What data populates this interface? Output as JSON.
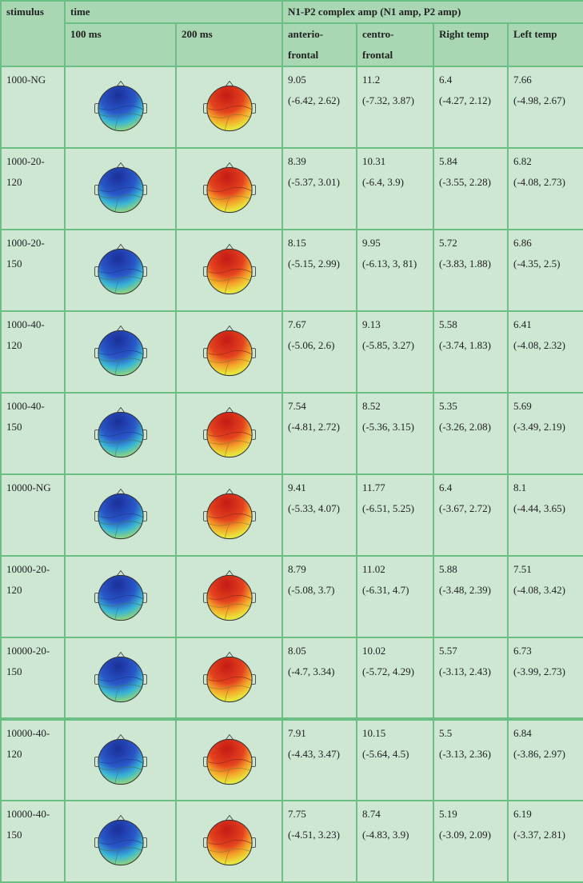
{
  "headers": {
    "stimulus": "stimulus",
    "time": "time",
    "amp_group": "N1-P2 complex amp (N1 amp, P2 amp)",
    "t100": "100 ms",
    "t200": "200 ms",
    "anterio_1": "anterio-",
    "anterio_2": "frontal",
    "centro_1": "centro-",
    "centro_2": "frontal",
    "right_temp": "Right temp",
    "left_temp": "Left temp"
  },
  "colors": {
    "border": "#6cbf84",
    "cell_bg": "#cde7d3",
    "header_bg": "#a9d7b3"
  },
  "rows": [
    {
      "stim1": "1000-NG",
      "stim2": "",
      "af1": "9.05",
      "af2": "(-6.42, 2.62)",
      "cf1": "11.2",
      "cf2": "(-7.32, 3.87)",
      "rt1": "6.4",
      "rt2": "(-4.27, 2.12)",
      "lt1": "7.66",
      "lt2": "(-4.98, 2.67)"
    },
    {
      "stim1": "1000-20-",
      "stim2": "120",
      "af1": "8.39",
      "af2": "(-5.37, 3.01)",
      "cf1": "10.31",
      "cf2": "(-6.4, 3.9)",
      "rt1": "5.84",
      "rt2": "(-3.55, 2.28)",
      "lt1": "6.82",
      "lt2": "(-4.08, 2.73)"
    },
    {
      "stim1": "1000-20-",
      "stim2": "150",
      "af1": "8.15",
      "af2": "(-5.15, 2.99)",
      "cf1": "9.95",
      "cf2": "(-6.13, 3, 81)",
      "rt1": "5.72",
      "rt2": "(-3.83, 1.88)",
      "lt1": "6.86",
      "lt2": "(-4.35, 2.5)"
    },
    {
      "stim1": "1000-40-",
      "stim2": "120",
      "af1": "7.67",
      "af2": "(-5.06, 2.6)",
      "cf1": "9.13",
      "cf2": "(-5.85, 3.27)",
      "rt1": "5.58",
      "rt2": "(-3.74, 1.83)",
      "lt1": "6.41",
      "lt2": "(-4.08, 2.32)"
    },
    {
      "stim1": "1000-40-",
      "stim2": "150",
      "af1": "7.54",
      "af2": "(-4.81, 2.72)",
      "cf1": "8.52",
      "cf2": "(-5.36, 3.15)",
      "rt1": "5.35",
      "rt2": "(-3.26, 2.08)",
      "lt1": "5.69",
      "lt2": "(-3.49, 2.19)"
    },
    {
      "stim1": "10000-NG",
      "stim2": "",
      "af1": "9.41",
      "af2": "(-5.33, 4.07)",
      "cf1": "11.77",
      "cf2": "(-6.51, 5.25)",
      "rt1": "6.4",
      "rt2": "(-3.67, 2.72)",
      "lt1": "8.1",
      "lt2": "(-4.44, 3.65)"
    },
    {
      "stim1": "10000-20-",
      "stim2": "120",
      "af1": "8.79",
      "af2": "(-5.08, 3.7)",
      "cf1": "11.02",
      "cf2": "(-6.31, 4.7)",
      "rt1": "5.88",
      "rt2": "(-3.48, 2.39)",
      "lt1": "7.51",
      "lt2": "(-4.08, 3.42)"
    },
    {
      "stim1": "10000-20-",
      "stim2": "150",
      "af1": "8.05",
      "af2": "(-4.7, 3.34)",
      "cf1": "10.02",
      "cf2": "(-5.72, 4.29)",
      "rt1": "5.57",
      "rt2": "(-3.13, 2.43)",
      "lt1": "6.73",
      "lt2": "(-3.99, 2.73)"
    },
    {
      "stim1": "10000-40-",
      "stim2": "120",
      "af1": "7.91",
      "af2": "(-4.43, 3.47)",
      "cf1": "10.15",
      "cf2": "(-5.64, 4.5)",
      "rt1": "5.5",
      "rt2": "(-3.13, 2.36)",
      "lt1": "6.84",
      "lt2": "(-3.86, 2.97)"
    },
    {
      "stim1": "10000-40-",
      "stim2": "150",
      "af1": "7.75",
      "af2": "(-4.51, 3.23)",
      "cf1": "8.74",
      "cf2": "(-4.83, 3.9)",
      "rt1": "5.19",
      "rt2": "(-3.09, 2.09)",
      "lt1": "6.19",
      "lt2": "(-3.37, 2.81)"
    }
  ]
}
